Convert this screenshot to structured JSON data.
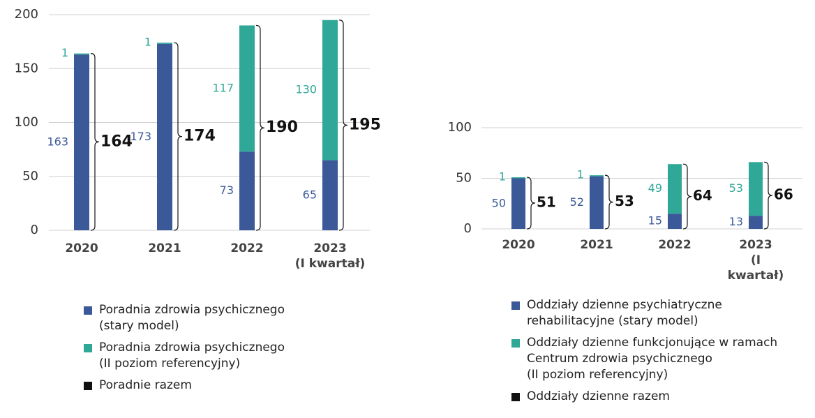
{
  "chart_data": [
    {
      "type": "bar",
      "stacked": true,
      "grid": true,
      "categories": [
        "2020",
        "2021",
        "2022",
        "2023\n(I kwartał)"
      ],
      "ylim": [
        0,
        200
      ],
      "yticks": [
        0,
        50,
        100,
        150,
        200
      ],
      "series": [
        {
          "name": "Poradnia zdrowia psychicznego\n(stary model)",
          "color": "#3b5998",
          "values": [
            163,
            173,
            73,
            65
          ]
        },
        {
          "name": "Poradnia zdrowia psychicznego\n(II poziom referencyjny)",
          "color": "#2fa898",
          "values": [
            1,
            1,
            117,
            130
          ]
        }
      ],
      "totals": {
        "name": "Poradnie razem",
        "color": "#111111",
        "values": [
          164,
          174,
          190,
          195
        ]
      }
    },
    {
      "type": "bar",
      "stacked": true,
      "grid": true,
      "categories": [
        "2020",
        "2021",
        "2022",
        "2023\n(I kwartał)"
      ],
      "ylim": [
        0,
        100
      ],
      "yticks": [
        0,
        50,
        100
      ],
      "series": [
        {
          "name": "Oddziały dzienne psychiatryczne\nrehabilitacyjne (stary model)",
          "color": "#3b5998",
          "values": [
            50,
            52,
            15,
            13
          ]
        },
        {
          "name": "Oddziały dzienne funkcjonujące w ramach\nCentrum zdrowia psychicznego\n(II poziom referencyjny)",
          "color": "#2fa898",
          "values": [
            1,
            1,
            49,
            53
          ]
        }
      ],
      "totals": {
        "name": "Oddziały dzienne razem",
        "color": "#111111",
        "values": [
          51,
          53,
          64,
          66
        ]
      }
    }
  ]
}
